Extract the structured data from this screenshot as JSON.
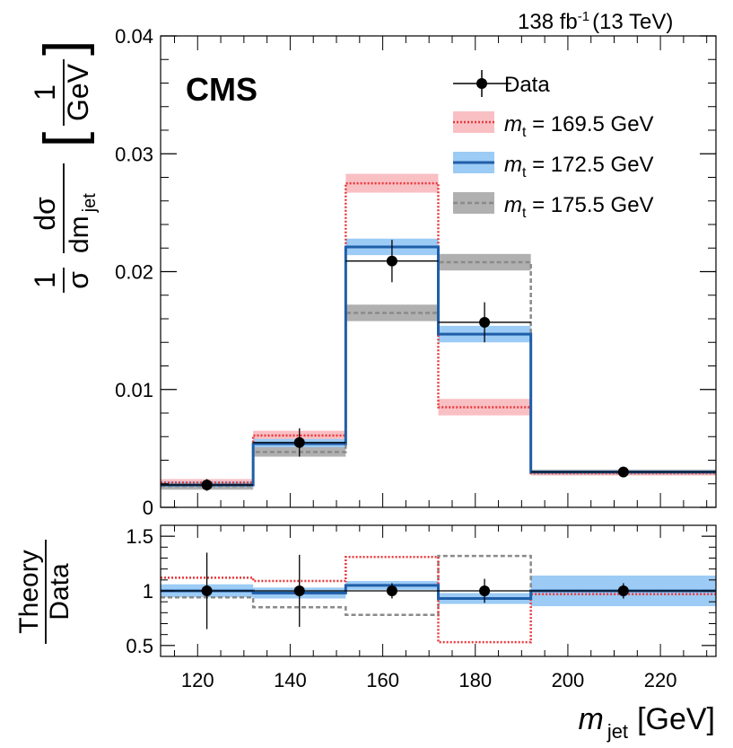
{
  "chart_data": [
    {
      "type": "line",
      "panel": "main",
      "lumi_label": "138 fb",
      "lumi_sup": "-1",
      "energy_label": "(13 TeV)",
      "experiment": "CMS",
      "ylabel": {
        "prefix": "1",
        "sigma": "σ",
        "num": "dσ",
        "den": "dm",
        "den_sub": "jet",
        "unit_num": "1",
        "unit_den": "GeV"
      },
      "xlim": [
        112,
        232
      ],
      "ylim": [
        0,
        0.04
      ],
      "yticks": [
        0,
        0.01,
        0.02,
        0.03,
        0.04
      ],
      "ytick_labels": [
        "0",
        "0.01",
        "0.02",
        "0.03",
        "0.04"
      ],
      "bin_edges": [
        112,
        132,
        152,
        172,
        192,
        232
      ],
      "data": {
        "name": "Data",
        "x": [
          122,
          142,
          162,
          182,
          212
        ],
        "y": [
          0.0019,
          0.0055,
          0.0209,
          0.0157,
          0.003
        ],
        "err": [
          0.0005,
          0.0012,
          0.0018,
          0.0017,
          0.0002
        ]
      },
      "series": [
        {
          "name_var": "m",
          "name_sub": "t",
          "name_rest": " = 169.5 GeV",
          "color": "#e8383d",
          "band_color": "#f9c0c4",
          "style": "dotted",
          "values": [
            0.0021,
            0.0061,
            0.0275,
            0.0085,
            0.0029
          ],
          "band": [
            0.0003,
            0.0004,
            0.0008,
            0.0007,
            0.0002
          ]
        },
        {
          "name_var": "m",
          "name_sub": "t",
          "name_rest": " = 172.5 GeV",
          "color": "#1f5ea8",
          "band_color": "#9ccbf5",
          "style": "solid",
          "values": [
            0.0019,
            0.0054,
            0.0221,
            0.0147,
            0.003
          ],
          "band": [
            0.0003,
            0.0004,
            0.0007,
            0.0007,
            0.0002
          ]
        },
        {
          "name_var": "m",
          "name_sub": "t",
          "name_rest": " = 175.5 GeV",
          "color": "#8a8a8a",
          "band_color": "#b0b0b0",
          "style": "dashed",
          "values": [
            0.0018,
            0.0047,
            0.0165,
            0.0208,
            0.003
          ],
          "band": [
            0.0003,
            0.0004,
            0.0007,
            0.0007,
            0.0002
          ]
        }
      ],
      "legend_data": "Data",
      "legend_position": "top-right"
    },
    {
      "type": "line",
      "panel": "ratio",
      "ylabel_num": "Theory",
      "ylabel_den": "Data",
      "xlabel_var": "m",
      "xlabel_sub": "jet",
      "xlabel_unit": "[GeV]",
      "xlim": [
        112,
        232
      ],
      "ylim": [
        0.4,
        1.6
      ],
      "xticks": [
        120,
        140,
        160,
        180,
        200,
        220
      ],
      "xtick_labels": [
        "120",
        "140",
        "160",
        "180",
        "200",
        "220"
      ],
      "yticks": [
        0.5,
        1,
        1.5
      ],
      "ytick_labels": [
        "0.5",
        "1",
        "1.5"
      ],
      "bin_edges": [
        112,
        132,
        152,
        172,
        192,
        232
      ],
      "data": {
        "x": [
          122,
          142,
          162,
          182,
          212
        ],
        "y": [
          1,
          1,
          1,
          1,
          1
        ],
        "err": [
          0.35,
          0.33,
          0.07,
          0.11,
          0.07
        ]
      },
      "series": [
        {
          "color": "#e8383d",
          "style": "dotted",
          "values": [
            1.12,
            1.09,
            1.31,
            0.53,
            0.97
          ]
        },
        {
          "color": "#1f5ea8",
          "band_color": "#9ccbf5",
          "style": "solid",
          "values": [
            1.0,
            0.98,
            1.05,
            0.93,
            1.0
          ],
          "band": [
            0.06,
            0.05,
            0.04,
            0.05,
            0.14
          ]
        },
        {
          "color": "#8a8a8a",
          "style": "dashed",
          "values": [
            0.94,
            0.85,
            0.78,
            1.32,
            1.0
          ]
        }
      ]
    }
  ]
}
